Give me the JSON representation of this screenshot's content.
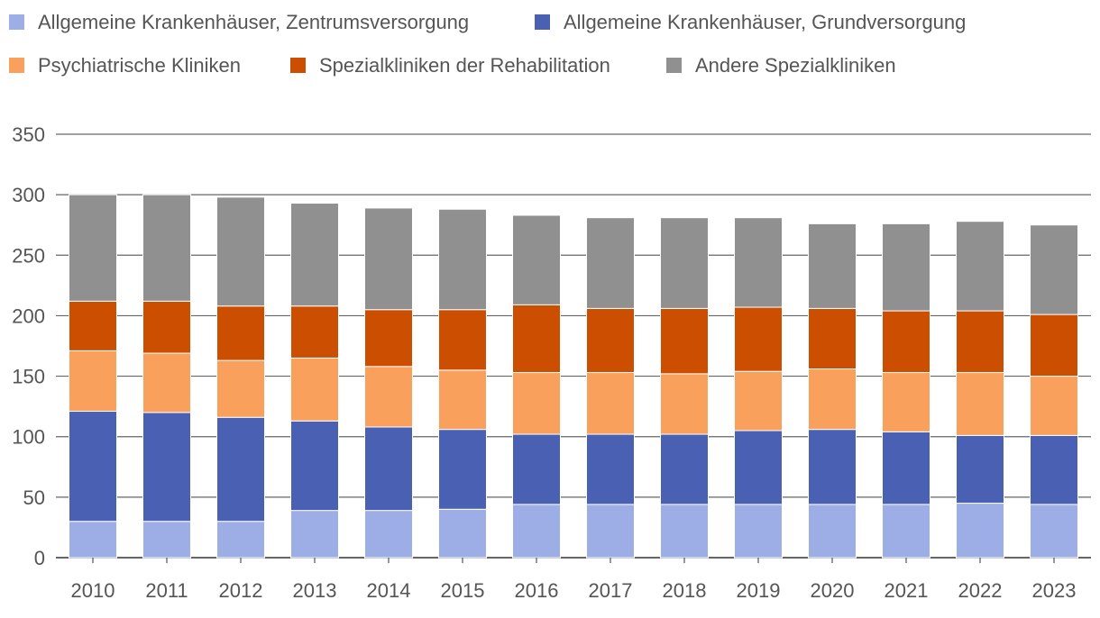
{
  "chart_data": {
    "type": "bar",
    "stacked": true,
    "title": "",
    "xlabel": "",
    "ylabel": "",
    "ylim": [
      0,
      350
    ],
    "yticks": [
      0,
      50,
      100,
      150,
      200,
      250,
      300,
      350
    ],
    "grid": true,
    "legend_position": "top",
    "categories": [
      "2010",
      "2011",
      "2012",
      "2013",
      "2014",
      "2015",
      "2016",
      "2017",
      "2018",
      "2019",
      "2020",
      "2021",
      "2022",
      "2023"
    ],
    "series": [
      {
        "name": "Allgemeine Krankenhäuser, Zentrumsversorgung",
        "color": "#9dade6",
        "values": [
          30,
          30,
          30,
          39,
          39,
          40,
          44,
          44,
          44,
          44,
          44,
          44,
          45,
          44
        ]
      },
      {
        "name": "Allgemeine Krankenhäuser, Grundversorgung",
        "color": "#4a61b3",
        "values": [
          91,
          90,
          86,
          74,
          69,
          66,
          58,
          58,
          58,
          61,
          62,
          60,
          56,
          57
        ]
      },
      {
        "name": "Psychiatrische Kliniken",
        "color": "#f8a05c",
        "values": [
          50,
          49,
          47,
          52,
          50,
          49,
          51,
          51,
          50,
          49,
          50,
          49,
          52,
          49
        ]
      },
      {
        "name": "Spezialkliniken der Rehabilitation",
        "color": "#cc4e00",
        "values": [
          41,
          43,
          45,
          43,
          47,
          50,
          56,
          53,
          54,
          53,
          50,
          51,
          51,
          51
        ]
      },
      {
        "name": "Andere Spezialkliniken",
        "color": "#909090",
        "values": [
          88,
          88,
          90,
          85,
          84,
          83,
          74,
          75,
          75,
          74,
          70,
          72,
          74,
          74
        ]
      }
    ]
  }
}
